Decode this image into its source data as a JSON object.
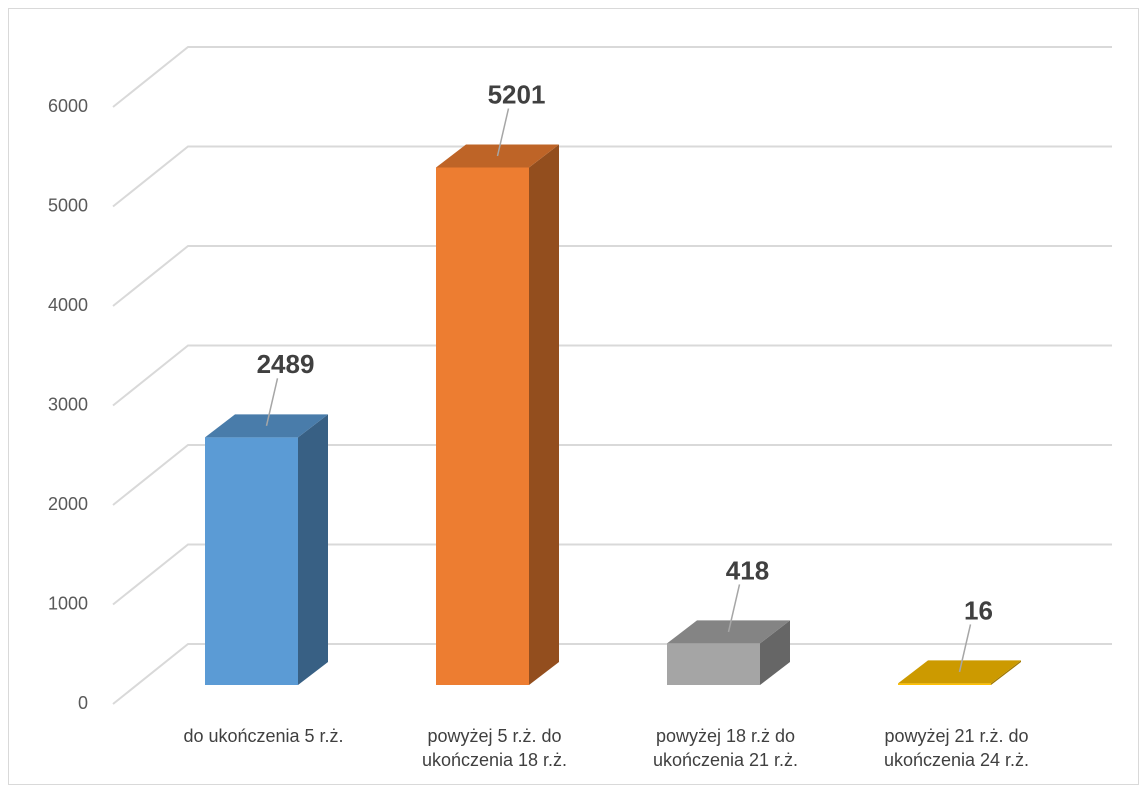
{
  "chart_data": {
    "type": "bar3d",
    "categories": [
      "do ukończenia 5 r.ż.",
      "powyżej 5 r.ż. do ukończenia 18 r.ż.",
      "powyżej 18 r.ż do ukończenia 21 r.ż.",
      "powyżej 21 r.ż. do ukończenia 24 r.ż."
    ],
    "values": [
      2489,
      5201,
      418,
      16
    ],
    "colors": [
      "#5b9bd5",
      "#ed7d31",
      "#a5a5a5",
      "#ffc000"
    ],
    "ylim": [
      0,
      6000
    ],
    "yticks": [
      0,
      1000,
      2000,
      3000,
      4000,
      5000,
      6000
    ],
    "grid": true
  }
}
